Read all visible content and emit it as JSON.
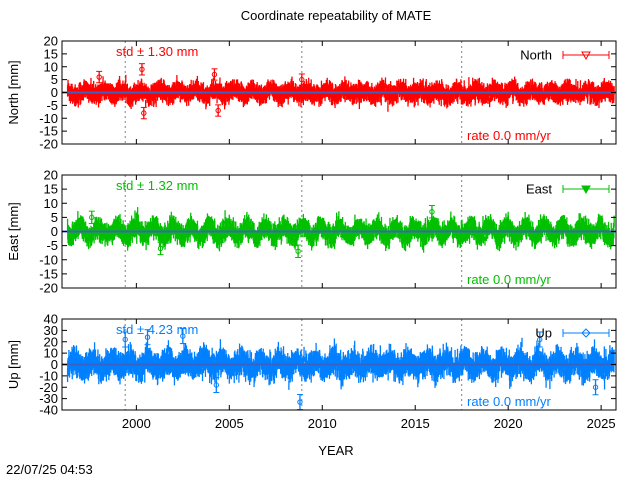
{
  "title": "Coordinate repeatability of MATE",
  "timestamp": "22/07/25 04:53",
  "colors": {
    "north": "#ff0000",
    "east": "#00c000",
    "up": "#0080ff",
    "trend": "#4060c0",
    "vline": "#808080"
  },
  "chart_data": {
    "type": "scatter",
    "xlabel": "YEAR",
    "xlim": [
      1996.0,
      2025.8
    ],
    "xticks": [
      2000,
      2005,
      2010,
      2015,
      2020,
      2025
    ],
    "xtick_labels": [
      "2000",
      "2005",
      "2010",
      "2015",
      "2020",
      "2025"
    ],
    "vlines": [
      1999.4,
      2008.9,
      2017.5
    ],
    "panels": [
      {
        "key": "north",
        "legend": "North",
        "ylabel": "North [mm]",
        "ylim": [
          -20,
          20
        ],
        "yticks": [
          -20,
          -15,
          -10,
          -5,
          0,
          5,
          10,
          15,
          20
        ],
        "ytick_labels": [
          "-20",
          "-15",
          "-10",
          "-5",
          "0",
          "5",
          "10",
          "15",
          "20"
        ],
        "std_label": "std ± 1.30 mm",
        "rate_label": "rate  0.0 mm/yr",
        "std": 1.3,
        "rate": 0.0,
        "seasonal_amplitude": 1.0,
        "errorbar": 2.0,
        "outliers": [
          [
            2000.3,
            9
          ],
          [
            2000.4,
            -8
          ],
          [
            2004.2,
            7
          ],
          [
            2008.9,
            5
          ],
          [
            1998.0,
            6
          ],
          [
            2004.4,
            -7
          ]
        ]
      },
      {
        "key": "east",
        "legend": "East",
        "ylabel": "East [mm]",
        "ylim": [
          -20,
          20
        ],
        "yticks": [
          -20,
          -15,
          -10,
          -5,
          0,
          5,
          10,
          15,
          20
        ],
        "ytick_labels": [
          "-20",
          "-15",
          "-10",
          "-5",
          "0",
          "5",
          "10",
          "15",
          "20"
        ],
        "std_label": "std ± 1.32 mm",
        "rate_label": "rate  0.0 mm/yr",
        "std": 1.32,
        "rate": 0.0,
        "seasonal_amplitude": 1.8,
        "errorbar": 2.0,
        "outliers": [
          [
            2015.9,
            7
          ],
          [
            2008.7,
            -7
          ],
          [
            2001.3,
            -6
          ],
          [
            1997.6,
            5
          ]
        ]
      },
      {
        "key": "up",
        "legend": "Up",
        "ylabel": "Up [mm]",
        "ylim": [
          -40,
          40
        ],
        "yticks": [
          -40,
          -30,
          -20,
          -10,
          0,
          10,
          20,
          30,
          40
        ],
        "ytick_labels": [
          "-40",
          "-30",
          "-20",
          "-10",
          "0",
          "10",
          "20",
          "30",
          "40"
        ],
        "std_label": "std ± 4.23 mm",
        "rate_label": "rate  0.0 mm/yr",
        "std": 4.23,
        "rate": 0.0,
        "seasonal_amplitude": 4.0,
        "errorbar": 6.0,
        "outliers": [
          [
            1999.4,
            22
          ],
          [
            2000.6,
            24
          ],
          [
            2002.5,
            25
          ],
          [
            2008.8,
            -33
          ],
          [
            2024.7,
            -20
          ],
          [
            2021.7,
            22
          ],
          [
            2004.3,
            -18
          ]
        ]
      }
    ]
  }
}
